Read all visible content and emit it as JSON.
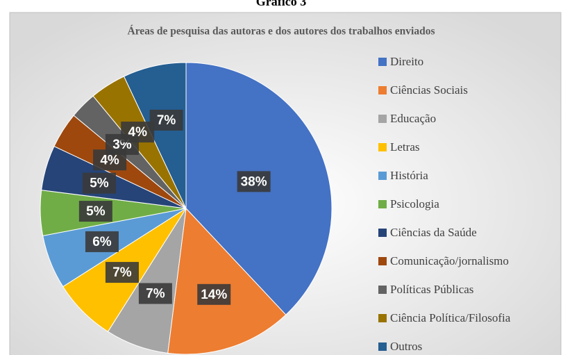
{
  "figure_label": "Gráfico 3",
  "chart_data": {
    "type": "pie",
    "title": "Áreas de pesquisa das autoras e dos autores dos trabalhos enviados",
    "categories": [
      "Direito",
      "Ciências Sociais",
      "Educação",
      "Letras",
      "História",
      "Psicologia",
      "Ciências da Saúde",
      "Comunicação/jornalismo",
      "Políticas Públicas",
      "Ciência Política/Filosofia",
      "Outros"
    ],
    "values": [
      38,
      14,
      7,
      7,
      6,
      5,
      5,
      4,
      3,
      4,
      7
    ],
    "value_labels": [
      "38%",
      "14%",
      "7%",
      "7%",
      "6%",
      "5%",
      "5%",
      "4%",
      "3%",
      "4%",
      "7%"
    ],
    "colors": [
      "#4472c4",
      "#ed7d31",
      "#a5a5a5",
      "#ffc000",
      "#5b9bd5",
      "#70ad47",
      "#264478",
      "#9e480e",
      "#636363",
      "#997300",
      "#255e91"
    ],
    "legend": "right"
  }
}
